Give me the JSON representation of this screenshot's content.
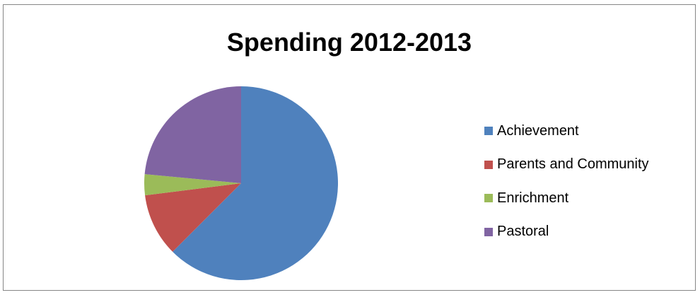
{
  "chart_data": {
    "type": "pie",
    "title": "Spending 2012-2013",
    "categories": [
      "Achievement",
      "Parents and Community",
      "Enrichment",
      "Pastoral"
    ],
    "values": [
      62.5,
      10.5,
      3.5,
      23.5
    ],
    "colors": [
      "#4f81bd",
      "#c0504d",
      "#9bbb59",
      "#8064a2"
    ],
    "legend_position": "right",
    "start_angle": "top",
    "direction": "clockwise"
  }
}
